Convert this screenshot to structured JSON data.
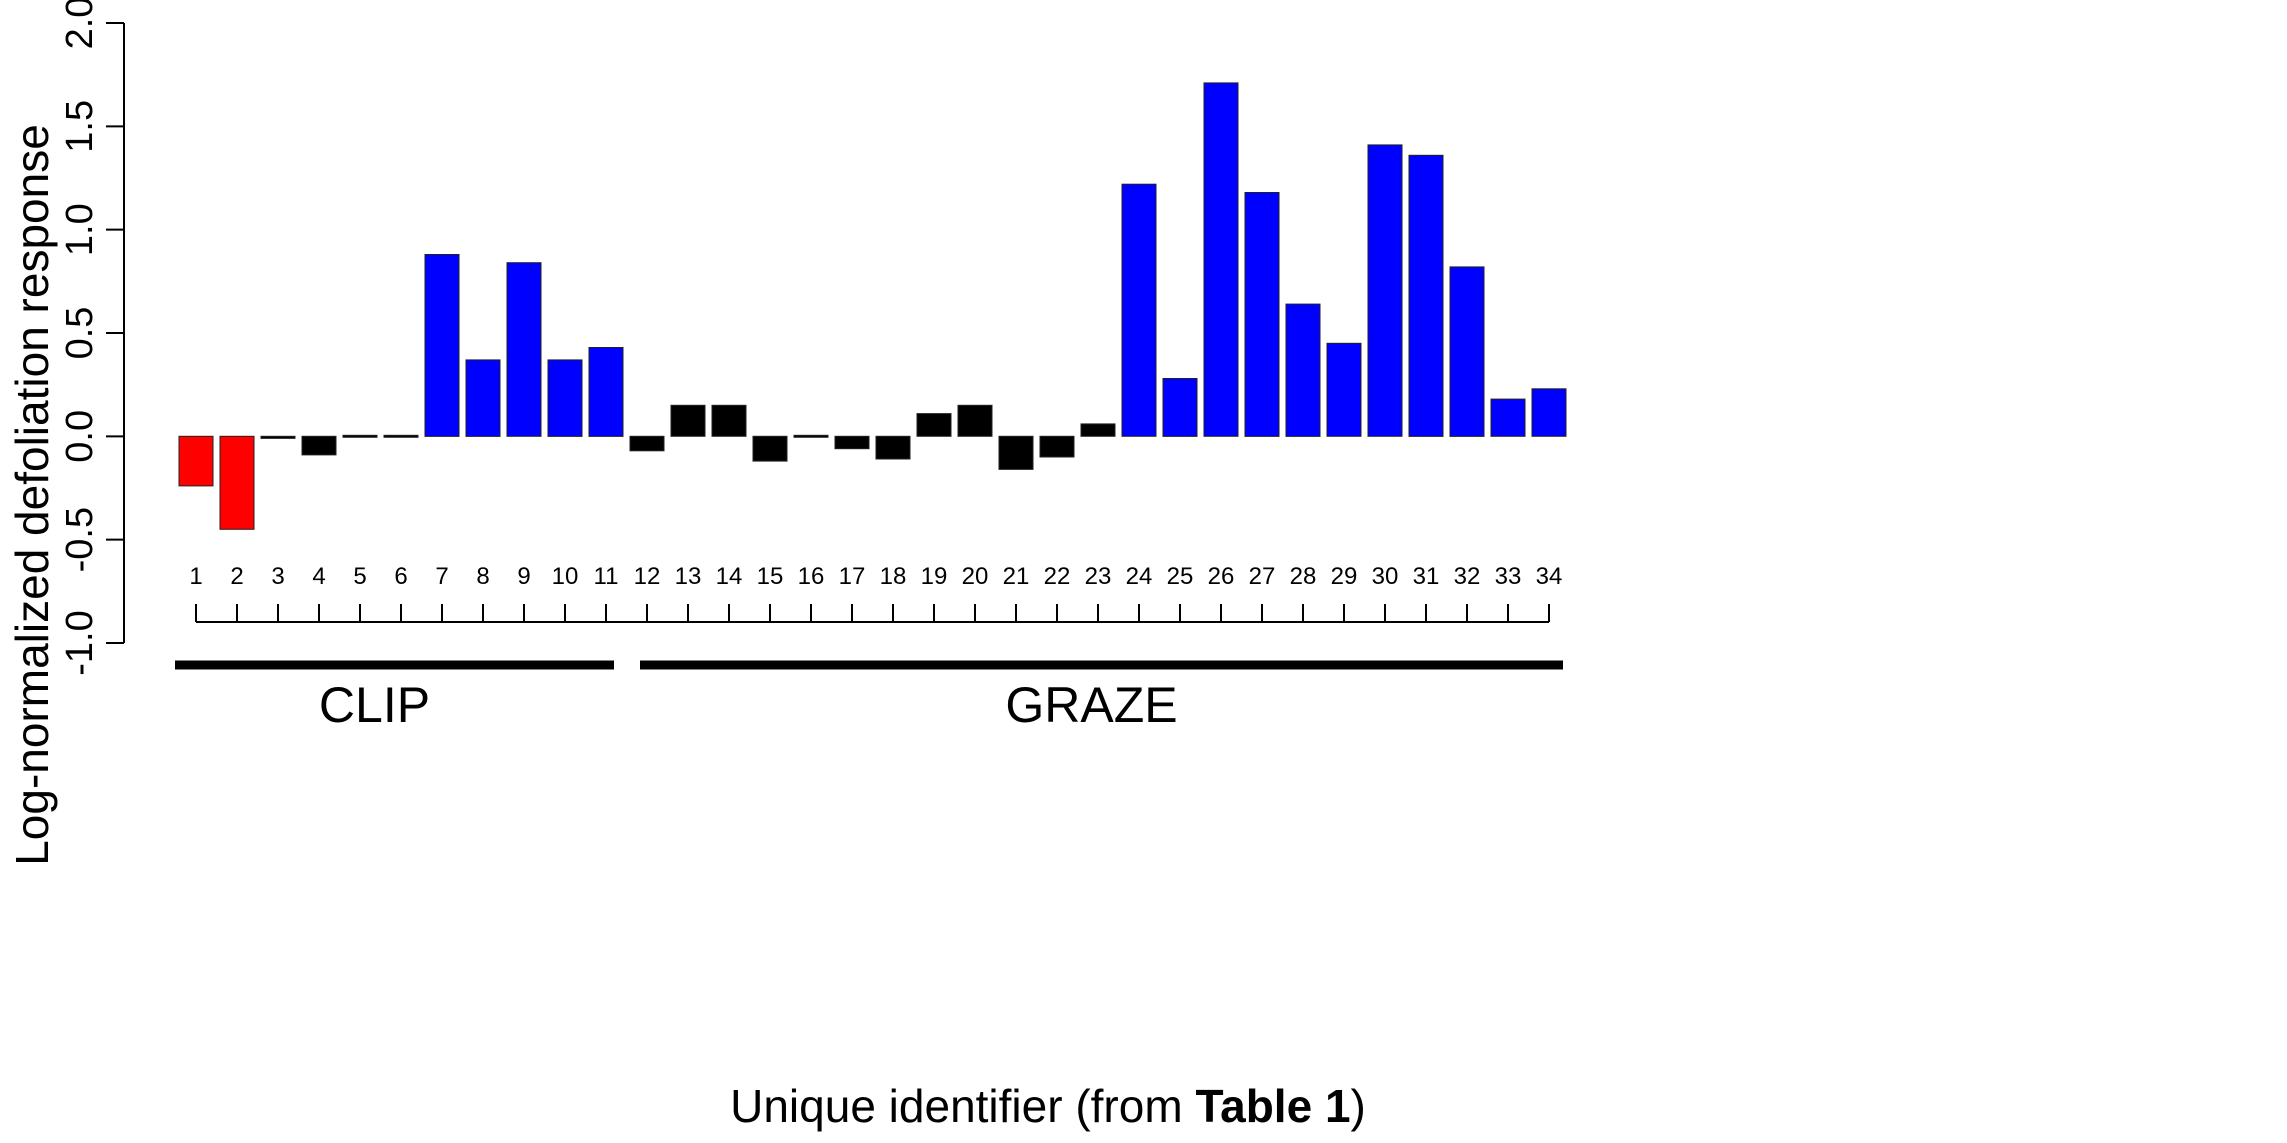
{
  "chart_data": {
    "type": "bar",
    "ylabel": "Log-normalized defoliation response",
    "xlabel": {
      "prefix": "Unique identifier (from ",
      "bold": "Table 1",
      "suffix": ")"
    },
    "ylim": [
      -1.0,
      2.0
    ],
    "yticks": [
      "-1.0",
      "-0.5",
      "0.0",
      "0.5",
      "1.0",
      "1.5",
      "2.0"
    ],
    "ytick_values": [
      -1.0,
      -0.5,
      0.0,
      0.5,
      1.0,
      1.5,
      2.0
    ],
    "categories": [
      "1",
      "2",
      "3",
      "4",
      "5",
      "6",
      "7",
      "8",
      "9",
      "10",
      "11",
      "12",
      "13",
      "14",
      "15",
      "16",
      "17",
      "18",
      "19",
      "20",
      "21",
      "22",
      "23",
      "24",
      "25",
      "26",
      "27",
      "28",
      "29",
      "30",
      "31",
      "32",
      "33",
      "34"
    ],
    "values": [
      -0.24,
      -0.45,
      -0.01,
      -0.09,
      0.005,
      0.005,
      0.88,
      0.37,
      0.84,
      0.37,
      0.43,
      -0.07,
      0.15,
      0.15,
      -0.12,
      -0.005,
      -0.06,
      -0.11,
      0.11,
      0.15,
      -0.16,
      -0.1,
      0.06,
      1.22,
      0.28,
      1.71,
      1.18,
      0.64,
      0.45,
      1.41,
      1.36,
      0.82,
      0.18,
      0.23
    ],
    "colors": {
      "negative_response": "#ff0000",
      "positive_response": "#0000ff",
      "neutral_response": "#000000"
    },
    "bar_color_keys": [
      "negative_response",
      "negative_response",
      "neutral_response",
      "neutral_response",
      "neutral_response",
      "neutral_response",
      "positive_response",
      "positive_response",
      "positive_response",
      "positive_response",
      "positive_response",
      "neutral_response",
      "neutral_response",
      "neutral_response",
      "neutral_response",
      "neutral_response",
      "neutral_response",
      "neutral_response",
      "neutral_response",
      "neutral_response",
      "neutral_response",
      "neutral_response",
      "neutral_response",
      "positive_response",
      "positive_response",
      "positive_response",
      "positive_response",
      "positive_response",
      "positive_response",
      "positive_response",
      "positive_response",
      "positive_response",
      "positive_response",
      "positive_response"
    ],
    "groups": [
      {
        "label": "CLIP",
        "from": 1,
        "to": 11
      },
      {
        "label": "GRAZE",
        "from": 12,
        "to": 34
      }
    ],
    "grid": false,
    "legend": "none"
  }
}
